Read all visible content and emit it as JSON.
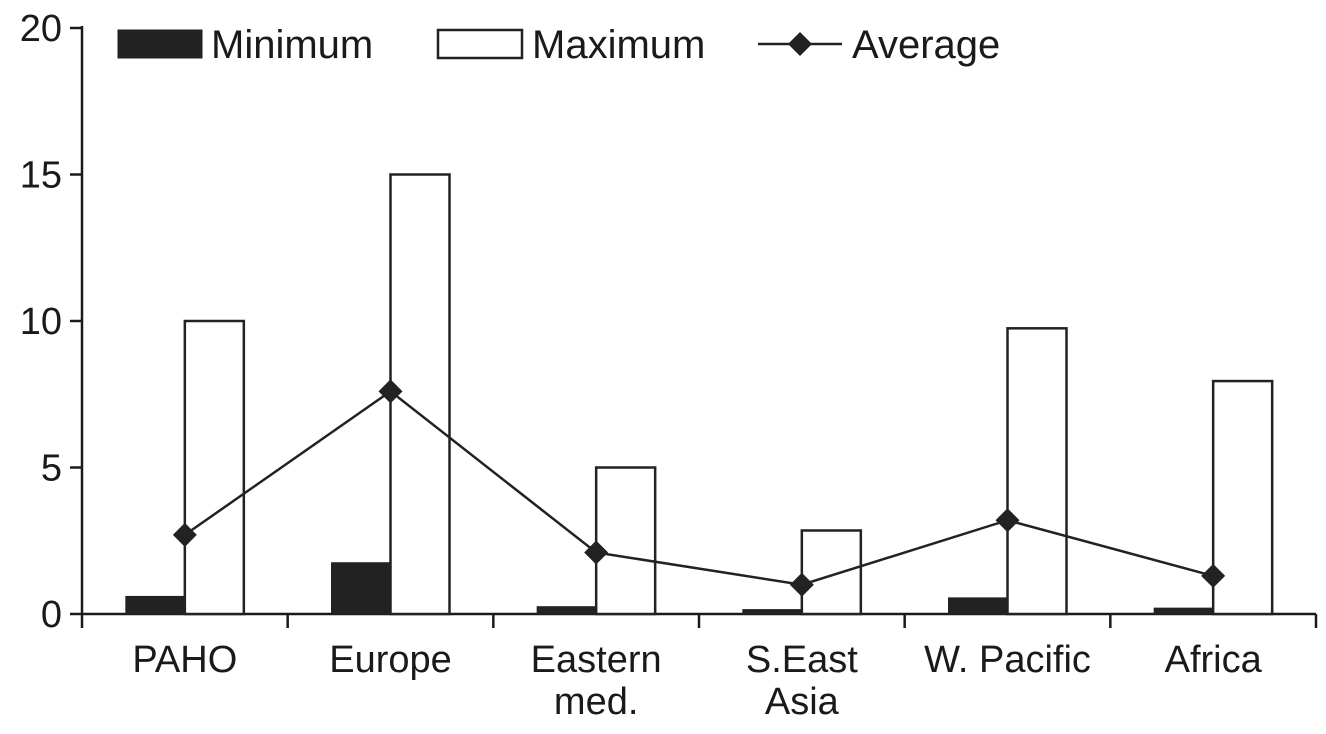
{
  "chart_data": {
    "type": "bar",
    "title": "",
    "xlabel": "",
    "ylabel": "",
    "ylim": [
      0,
      20
    ],
    "yticks": [
      0,
      5,
      10,
      15,
      20
    ],
    "grid": false,
    "legend_position": "top-left",
    "categories": [
      [
        "PAHO"
      ],
      [
        "Europe"
      ],
      [
        "Eastern",
        "med."
      ],
      [
        "S.East",
        "Asia"
      ],
      [
        "W. Pacific"
      ],
      [
        "Africa"
      ]
    ],
    "series": [
      {
        "name": "Minimum",
        "kind": "bar",
        "style": "filled",
        "color": "#222222",
        "values": [
          0.6,
          1.75,
          0.25,
          0.15,
          0.55,
          0.2
        ]
      },
      {
        "name": "Maximum",
        "kind": "bar",
        "style": "outline",
        "color": "#222222",
        "values": [
          10,
          15,
          5,
          2.85,
          9.75,
          7.95
        ]
      },
      {
        "name": "Average",
        "kind": "line",
        "marker": "diamond",
        "color": "#222222",
        "values": [
          2.7,
          7.6,
          2.1,
          1.0,
          3.2,
          1.3
        ]
      }
    ]
  }
}
